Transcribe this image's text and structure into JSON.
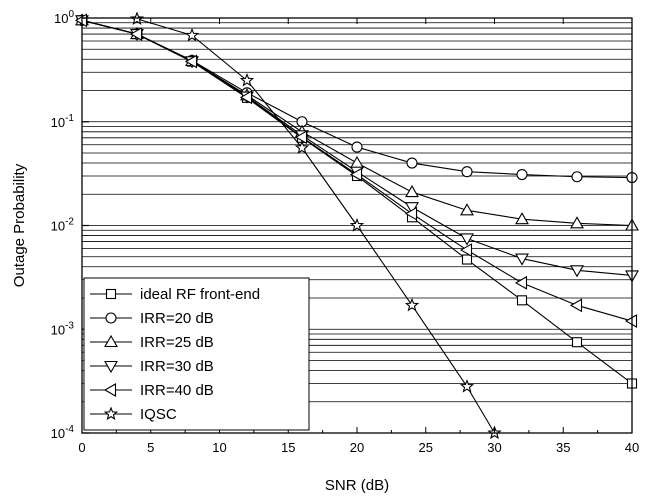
{
  "chart_data": {
    "type": "line",
    "title": "",
    "xlabel": "SNR (dB)",
    "ylabel": "Outage Probability",
    "xlim": [
      0,
      40
    ],
    "ylim": [
      0.0001,
      1
    ],
    "yscale": "log",
    "grid": "horizontal major and minor",
    "legend_position": "bottom-left",
    "x_ticks": [
      "0",
      "5",
      "10",
      "15",
      "20",
      "25",
      "30",
      "35",
      "40"
    ],
    "y_ticks": [
      {
        "base": "10",
        "exp": "-4",
        "value": 0.0001
      },
      {
        "base": "10",
        "exp": "-3",
        "value": 0.001
      },
      {
        "base": "10",
        "exp": "-2",
        "value": 0.01
      },
      {
        "base": "10",
        "exp": "-1",
        "value": 0.1
      },
      {
        "base": "10",
        "exp": "0",
        "value": 1
      }
    ],
    "series": [
      {
        "name": "ideal RF front-end",
        "marker": "square",
        "x": [
          0,
          4,
          8,
          12,
          16,
          20,
          24,
          28,
          32,
          36,
          40
        ],
        "y": [
          0.95,
          0.7,
          0.38,
          0.17,
          0.07,
          0.03,
          0.012,
          0.0047,
          0.0019,
          0.00075,
          0.0003
        ]
      },
      {
        "name": "IRR=20 dB",
        "marker": "circle",
        "x": [
          0,
          4,
          8,
          12,
          16,
          20,
          24,
          28,
          32,
          36,
          40
        ],
        "y": [
          0.95,
          0.7,
          0.39,
          0.19,
          0.1,
          0.057,
          0.04,
          0.033,
          0.031,
          0.0295,
          0.029
        ]
      },
      {
        "name": "IRR=25 dB",
        "marker": "triangle-up",
        "x": [
          0,
          4,
          8,
          12,
          16,
          20,
          24,
          28,
          32,
          36,
          40
        ],
        "y": [
          0.95,
          0.7,
          0.385,
          0.18,
          0.08,
          0.04,
          0.021,
          0.014,
          0.0115,
          0.0105,
          0.01
        ]
      },
      {
        "name": "IRR=30 dB",
        "marker": "triangle-down",
        "x": [
          0,
          4,
          8,
          12,
          16,
          20,
          24,
          28,
          32,
          36,
          40
        ],
        "y": [
          0.95,
          0.7,
          0.383,
          0.175,
          0.074,
          0.033,
          0.015,
          0.0075,
          0.0048,
          0.0037,
          0.0033
        ]
      },
      {
        "name": "IRR=40 dB",
        "marker": "triangle-left",
        "x": [
          0,
          4,
          8,
          12,
          16,
          20,
          24,
          28,
          32,
          36,
          40
        ],
        "y": [
          0.95,
          0.7,
          0.381,
          0.172,
          0.071,
          0.031,
          0.013,
          0.0058,
          0.0028,
          0.0017,
          0.0012
        ]
      },
      {
        "name": "IQSC",
        "marker": "star",
        "x": [
          4,
          8,
          12,
          16,
          20,
          24,
          28,
          30
        ],
        "y": [
          0.98,
          0.68,
          0.25,
          0.056,
          0.01,
          0.0017,
          0.00028,
          0.0001
        ]
      }
    ]
  }
}
